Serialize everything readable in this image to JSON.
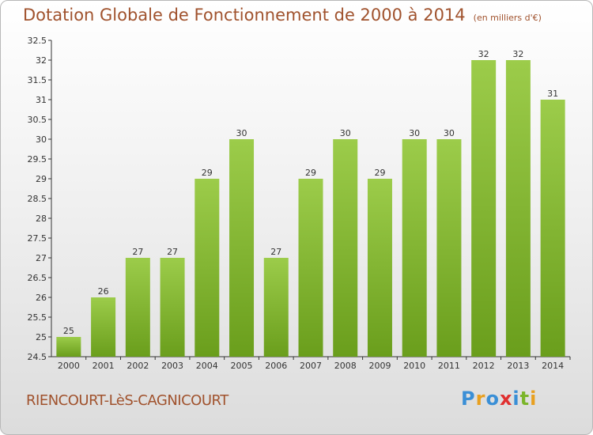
{
  "title": {
    "main": "Dotation Globale de Fonctionnement de 2000 à 2014",
    "unit": "(en milliers d'€)"
  },
  "footer": {
    "commune": "RIENCOURT-LèS-CAGNICOURT",
    "logo": "Proxiti"
  },
  "colors": {
    "title": "#a0522d",
    "bar_top": "#9ccc4a",
    "bar_bottom": "#6a9e1c",
    "logo_letters": [
      "#3a8fd6",
      "#e8a020",
      "#3a8fd6",
      "#e03030",
      "#3a8fd6",
      "#7bb52a",
      "#e8a020"
    ]
  },
  "chart_data": {
    "type": "bar",
    "categories": [
      "2000",
      "2001",
      "2002",
      "2003",
      "2004",
      "2005",
      "2006",
      "2007",
      "2008",
      "2009",
      "2010",
      "2011",
      "2012",
      "2013",
      "2014"
    ],
    "values": [
      25,
      26,
      27,
      27,
      29,
      30,
      27,
      29,
      30,
      29,
      30,
      30,
      32,
      32,
      31
    ],
    "data_labels": [
      "25",
      "26",
      "27",
      "27",
      "29",
      "30",
      "27",
      "29",
      "30",
      "29",
      "30",
      "30",
      "32",
      "32",
      "31"
    ],
    "ylim": [
      24.5,
      32.5
    ],
    "yticks": [
      "24.5",
      "25",
      "25.5",
      "26",
      "26.5",
      "27",
      "27.5",
      "28",
      "28.5",
      "29",
      "29.5",
      "30",
      "30.5",
      "31",
      "31.5",
      "32",
      "32.5"
    ],
    "grid": false,
    "legend": "none"
  }
}
